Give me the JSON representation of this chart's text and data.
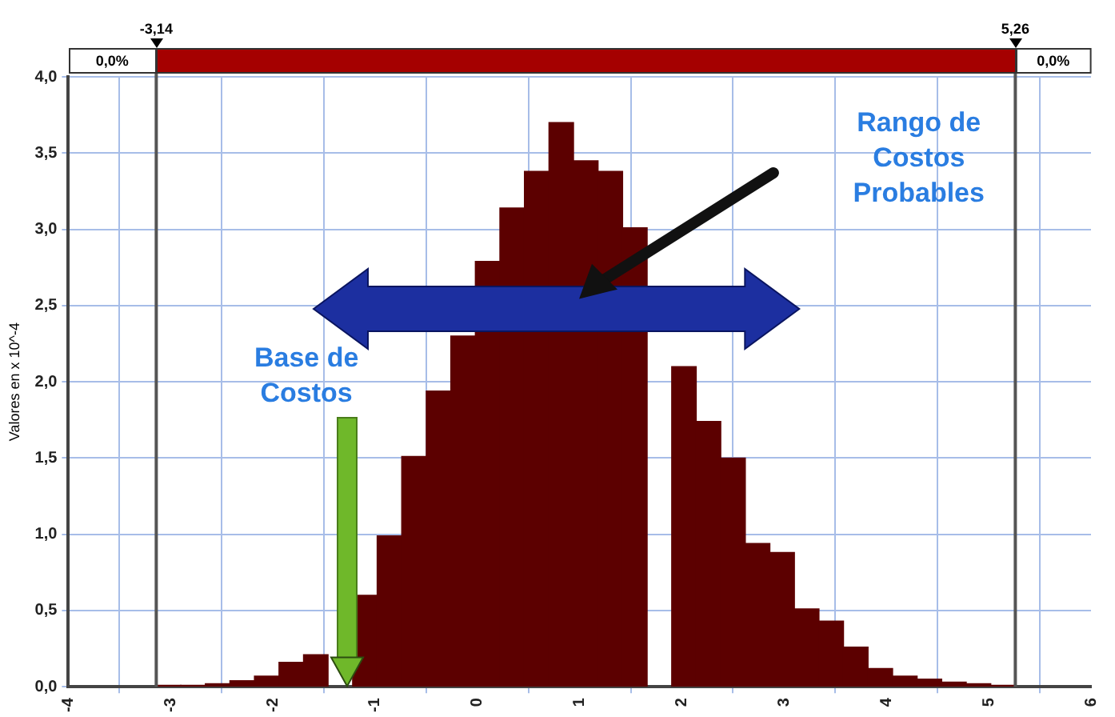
{
  "chart_data": {
    "type": "histogram",
    "ylabel": "Valores en x 10^-4",
    "bins": [
      -3.14,
      -2.9,
      -2.66,
      -2.42,
      -2.18,
      -1.94,
      -1.7,
      -1.46,
      -1.22,
      -0.98,
      -0.74,
      -0.5,
      -0.26,
      -0.02,
      0.22,
      0.46,
      0.7,
      0.94,
      1.18,
      1.42,
      1.66,
      1.9,
      2.14,
      2.38,
      2.62,
      2.86,
      3.1,
      3.34,
      3.58,
      3.82,
      4.06,
      4.3,
      4.54,
      4.78,
      5.02,
      5.26
    ],
    "values": [
      0.01,
      0.01,
      0.02,
      0.04,
      0.07,
      0.16,
      0.21,
      null,
      0.6,
      0.99,
      1.51,
      1.94,
      2.3,
      2.79,
      3.14,
      3.38,
      3.7,
      3.45,
      3.38,
      3.01,
      null,
      2.1,
      1.74,
      1.5,
      0.94,
      0.88,
      0.51,
      0.43,
      0.26,
      0.12,
      0.07,
      0.05,
      0.03,
      0.02,
      0.01
    ],
    "color": "#5c0000",
    "xlim": [
      -4,
      6
    ],
    "xticks": [
      -4,
      -3,
      -2,
      -1,
      0,
      1,
      2,
      3,
      4,
      5,
      6
    ],
    "ylim": [
      0,
      4
    ],
    "yticks": [
      {
        "value": 0,
        "label": "0,0"
      },
      {
        "value": 0.5,
        "label": "0,5"
      },
      {
        "value": 1,
        "label": "1,0"
      },
      {
        "value": 1.5,
        "label": "1,5"
      },
      {
        "value": 2,
        "label": "2,0"
      },
      {
        "value": 2.5,
        "label": "2,5"
      },
      {
        "value": 3,
        "label": "3,0"
      },
      {
        "value": 3.5,
        "label": "3,5"
      },
      {
        "value": 4,
        "label": "4,0"
      }
    ],
    "ref_lines": [
      {
        "axis": "x",
        "value": -3.14,
        "label": "-3,14",
        "color": "#555555"
      },
      {
        "axis": "x",
        "value": 5.26,
        "label": "5,26",
        "color": "#555555"
      }
    ],
    "annotations": [
      "0,0%",
      "0,0%",
      "Rango de Costos Probables",
      "Base de Costos"
    ],
    "grid": true,
    "legend": false
  }
}
